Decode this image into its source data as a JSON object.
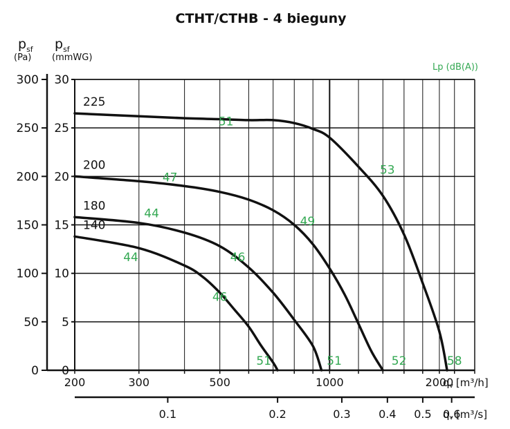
{
  "chart_data": {
    "type": "line",
    "title": "CTHT/CTHB - 4 bieguny",
    "green_color": "#33a852",
    "curve_color": "#111111",
    "y_left": {
      "label_main": "p",
      "label_sub": "sf",
      "unit": "(Pa)",
      "range": [
        0,
        300
      ],
      "ticks": [
        "0",
        "50",
        "100",
        "150",
        "200",
        "250",
        "300"
      ],
      "tick_values": [
        0,
        50,
        100,
        150,
        200,
        250,
        300
      ]
    },
    "y_right": {
      "label_main": "p",
      "label_sub": "sf",
      "unit": "(mmWG)",
      "range": [
        0,
        30
      ],
      "ticks": [
        "0",
        "5",
        "10",
        "15",
        "20",
        "25",
        "30"
      ],
      "tick_values": [
        0,
        5,
        10,
        15,
        20,
        25,
        30
      ]
    },
    "x_top": {
      "scale": "log",
      "range": [
        200,
        2500
      ],
      "ticks": [
        "200",
        "300",
        "500",
        "1000",
        "2000"
      ],
      "tick_values": [
        200,
        300,
        500,
        1000,
        2000
      ],
      "label": "q",
      "label_sub": "v",
      "unit": "[m³/h]",
      "grid_values": [
        200,
        300,
        400,
        500,
        600,
        700,
        800,
        900,
        1000,
        1200,
        1400,
        1600,
        1800,
        2000,
        2200,
        2500
      ]
    },
    "x_bottom": {
      "scale": "log",
      "range": [
        0.0556,
        0.694
      ],
      "ticks": [
        "0.1",
        "0.2",
        "0.3",
        "0.4",
        "0.5",
        "0.6"
      ],
      "tick_values": [
        0.1,
        0.2,
        0.3,
        0.4,
        0.5,
        0.6
      ],
      "label": "q",
      "label_sub": "v",
      "unit": "[m³/s]"
    },
    "sound_label": "Lp (dB(A))",
    "series": [
      {
        "name": "225",
        "points": [
          [
            200,
            265
          ],
          [
            300,
            262
          ],
          [
            400,
            260
          ],
          [
            500,
            259
          ],
          [
            600,
            258
          ],
          [
            700,
            258
          ],
          [
            800,
            255
          ],
          [
            900,
            249
          ],
          [
            1000,
            240
          ],
          [
            1200,
            210
          ],
          [
            1400,
            180
          ],
          [
            1600,
            140
          ],
          [
            1800,
            90
          ],
          [
            2000,
            40
          ],
          [
            2100,
            0
          ]
        ],
        "sound": [
          {
            "label": "51",
            "x": 520,
            "y": 257
          },
          {
            "label": "53",
            "x": 1440,
            "y": 207
          },
          {
            "label": "58",
            "x": 2200,
            "y": 10
          }
        ]
      },
      {
        "name": "200",
        "points": [
          [
            200,
            200
          ],
          [
            300,
            195
          ],
          [
            400,
            190
          ],
          [
            500,
            184
          ],
          [
            600,
            176
          ],
          [
            700,
            165
          ],
          [
            800,
            150
          ],
          [
            900,
            130
          ],
          [
            1000,
            105
          ],
          [
            1100,
            78
          ],
          [
            1200,
            48
          ],
          [
            1300,
            20
          ],
          [
            1400,
            0
          ]
        ],
        "sound": [
          {
            "label": "47",
            "x": 365,
            "y": 199
          },
          {
            "label": "49",
            "x": 870,
            "y": 154
          },
          {
            "label": "52",
            "x": 1550,
            "y": 10
          }
        ]
      },
      {
        "name": "180",
        "points": [
          [
            200,
            158
          ],
          [
            300,
            152
          ],
          [
            400,
            142
          ],
          [
            500,
            128
          ],
          [
            600,
            106
          ],
          [
            700,
            80
          ],
          [
            800,
            52
          ],
          [
            900,
            25
          ],
          [
            950,
            0
          ]
        ],
        "sound": [
          {
            "label": "44",
            "x": 325,
            "y": 162
          },
          {
            "label": "46",
            "x": 560,
            "y": 117
          },
          {
            "label": "51",
            "x": 1030,
            "y": 10
          }
        ]
      },
      {
        "name": "140",
        "points": [
          [
            200,
            138
          ],
          [
            300,
            126
          ],
          [
            400,
            108
          ],
          [
            450,
            96
          ],
          [
            500,
            80
          ],
          [
            550,
            62
          ],
          [
            600,
            45
          ],
          [
            650,
            25
          ],
          [
            700,
            8
          ],
          [
            720,
            0
          ]
        ],
        "sound": [
          {
            "label": "44",
            "x": 285,
            "y": 117
          },
          {
            "label": "46",
            "x": 500,
            "y": 76
          },
          {
            "label": "51",
            "x": 660,
            "y": 10
          }
        ]
      }
    ]
  }
}
